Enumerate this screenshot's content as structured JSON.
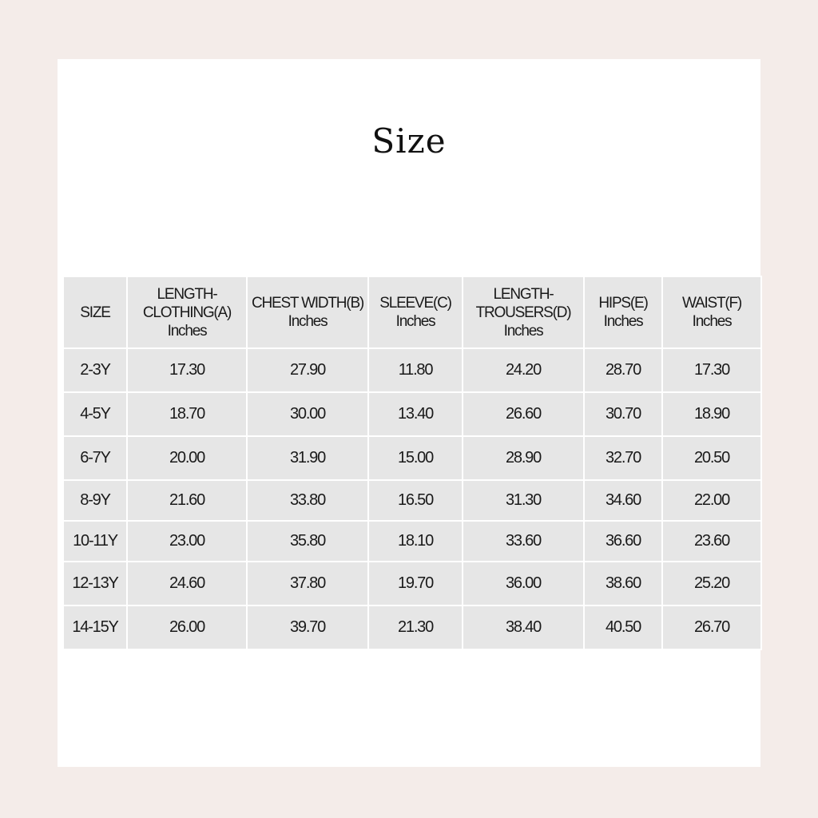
{
  "title": "Size",
  "table": {
    "headers": [
      [
        "SIZE"
      ],
      [
        "LENGTH-",
        "CLOTHING(A)",
        "Inches"
      ],
      [
        "CHEST WIDTH(B)",
        "Inches"
      ],
      [
        "SLEEVE(C)",
        "Inches"
      ],
      [
        "LENGTH-",
        "TROUSERS(D)",
        "Inches"
      ],
      [
        "HIPS(E)",
        "Inches"
      ],
      [
        "WAIST(F)",
        "Inches"
      ]
    ],
    "rows": [
      [
        "2-3Y",
        "17.30",
        "27.90",
        "11.80",
        "24.20",
        "28.70",
        "17.30"
      ],
      [
        "4-5Y",
        "18.70",
        "30.00",
        "13.40",
        "26.60",
        "30.70",
        "18.90"
      ],
      [
        "6-7Y",
        "20.00",
        "31.90",
        "15.00",
        "28.90",
        "32.70",
        "20.50"
      ],
      [
        "8-9Y",
        "21.60",
        "33.80",
        "16.50",
        "31.30",
        "34.60",
        "22.00"
      ],
      [
        "10-11Y",
        "23.00",
        "35.80",
        "18.10",
        "33.60",
        "36.60",
        "23.60"
      ],
      [
        "12-13Y",
        "24.60",
        "37.80",
        "19.70",
        "36.00",
        "38.60",
        "25.20"
      ],
      [
        "14-15Y",
        "26.00",
        "39.70",
        "21.30",
        "38.40",
        "40.50",
        "26.70"
      ]
    ]
  }
}
